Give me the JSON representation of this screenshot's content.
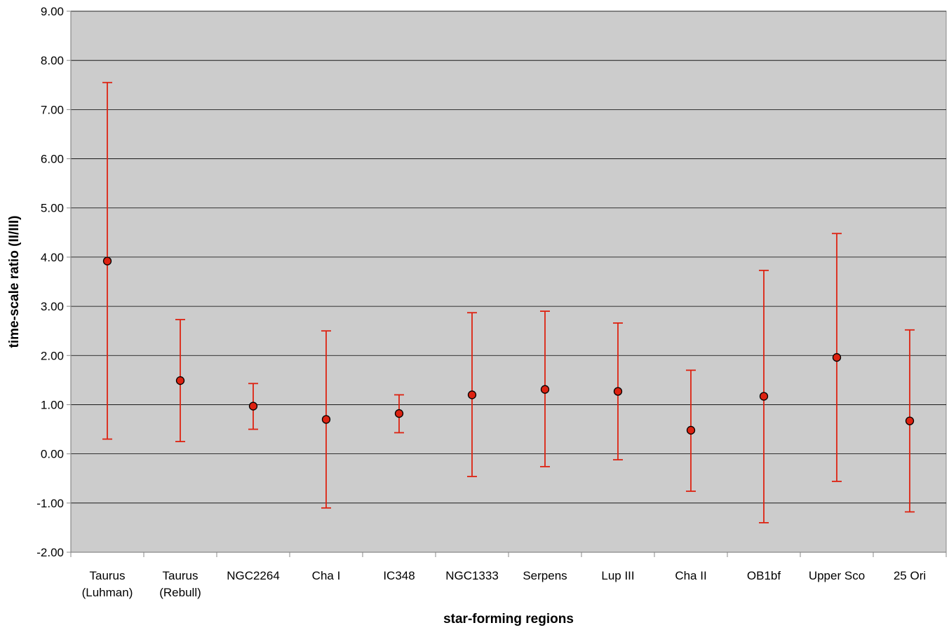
{
  "chart_data": {
    "type": "scatter",
    "title": "",
    "xlabel": "star-forming regions",
    "ylabel": "time-scale ratio (II/III)",
    "ylim": [
      -2,
      9
    ],
    "ytick_step": 1,
    "ytick_labels": [
      "-2.00",
      "-1.00",
      "0.00",
      "1.00",
      "2.00",
      "3.00",
      "4.00",
      "5.00",
      "6.00",
      "7.00",
      "8.00",
      "9.00"
    ],
    "grid": true,
    "legend": "none",
    "categories": [
      [
        "Taurus",
        "(Luhman)"
      ],
      [
        "Taurus",
        "(Rebull)"
      ],
      [
        "NGC2264"
      ],
      [
        "Cha I"
      ],
      [
        "IC348"
      ],
      [
        "NGC1333"
      ],
      [
        "Serpens"
      ],
      [
        "Lup III"
      ],
      [
        "Cha II"
      ],
      [
        "OB1bf"
      ],
      [
        "Upper Sco"
      ],
      [
        "25 Ori"
      ]
    ],
    "series": [
      {
        "values": [
          3.92,
          1.49,
          0.97,
          0.7,
          0.82,
          1.2,
          1.31,
          1.27,
          0.48,
          1.17,
          1.96,
          0.67
        ],
        "error_low": [
          0.3,
          0.25,
          0.5,
          -1.1,
          0.43,
          -0.46,
          -0.26,
          -0.12,
          -0.76,
          -1.4,
          -0.56,
          -1.18
        ],
        "error_high": [
          7.55,
          2.73,
          1.43,
          2.5,
          1.2,
          2.87,
          2.9,
          2.66,
          1.7,
          3.73,
          4.48,
          2.52
        ]
      }
    ],
    "colors": {
      "plot_background": "#cccccc",
      "gridline": "#000000",
      "marker_fill": "#dd2211",
      "marker_edge": "#000000",
      "error_bar": "#dd2211",
      "axis": "#888888"
    }
  }
}
